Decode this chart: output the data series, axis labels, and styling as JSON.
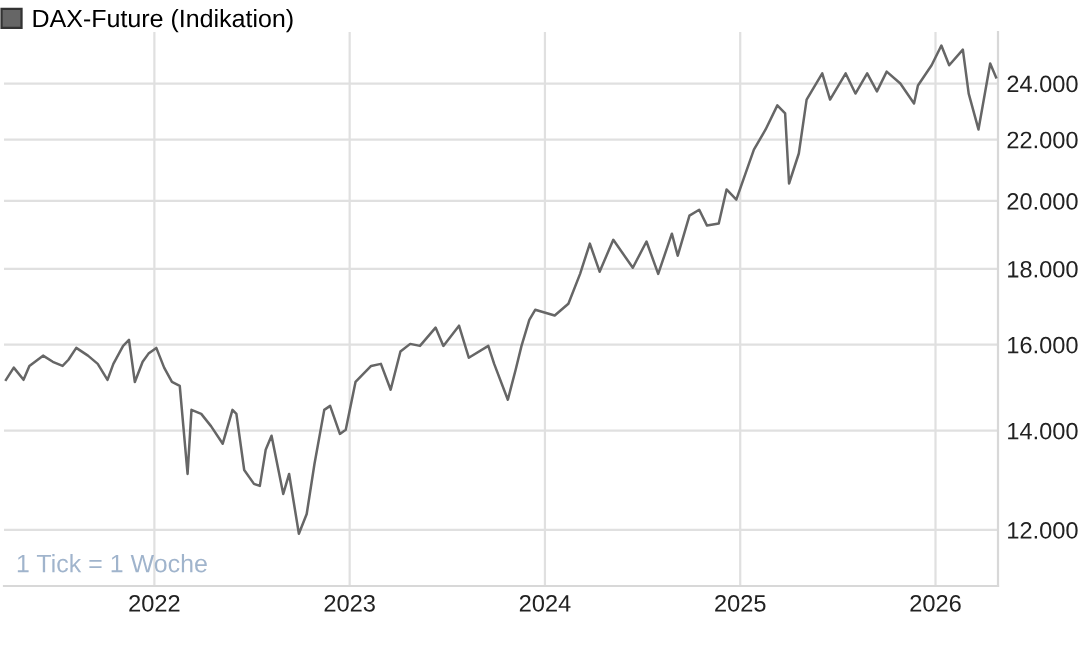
{
  "chart_data": {
    "type": "line",
    "log": "y",
    "grid": true,
    "legend": "top left",
    "marker": "none",
    "line_style": "solid",
    "xlim": [
      2021.23,
      2026.32
    ],
    "xticks": [
      2022,
      2023,
      2024,
      2025,
      2026
    ],
    "ylim": [
      11000,
      26000
    ],
    "yticks": [
      {
        "value": 12000,
        "label": "12.000"
      },
      {
        "value": 14000,
        "label": "14.000"
      },
      {
        "value": 16000,
        "label": "16.000"
      },
      {
        "value": 18000,
        "label": "18.000"
      },
      {
        "value": 20000,
        "label": "20.000"
      },
      {
        "value": 22000,
        "label": "22.000"
      },
      {
        "value": 24000,
        "label": "24.000"
      }
    ],
    "annotations": [
      "1 Tick = 1 Woche"
    ],
    "series": [
      {
        "name": "DAX-Future (Indikation)",
        "color": "#666666",
        "x": [
          2021.24,
          2021.28,
          2021.33,
          2021.36,
          2021.43,
          2021.48,
          2021.53,
          2021.56,
          2021.6,
          2021.66,
          2021.71,
          2021.76,
          2021.79,
          2021.84,
          2021.87,
          2021.9,
          2021.94,
          2021.97,
          2022.01,
          2022.05,
          2022.09,
          2022.13,
          2022.17,
          2022.19,
          2022.24,
          2022.29,
          2022.35,
          2022.4,
          2022.42,
          2022.46,
          2022.51,
          2022.54,
          2022.57,
          2022.6,
          2022.66,
          2022.69,
          2022.74,
          2022.78,
          2022.82,
          2022.87,
          2022.9,
          2022.95,
          2022.98,
          2023.03,
          2023.11,
          2023.16,
          2023.21,
          2023.26,
          2023.31,
          2023.36,
          2023.44,
          2023.48,
          2023.56,
          2023.61,
          2023.71,
          2023.74,
          2023.81,
          2023.85,
          2023.88,
          2023.92,
          2023.95,
          2024.05,
          2024.12,
          2024.18,
          2024.23,
          2024.28,
          2024.35,
          2024.45,
          2024.52,
          2024.58,
          2024.65,
          2024.68,
          2024.74,
          2024.79,
          2024.83,
          2024.89,
          2024.93,
          2024.98,
          2025.07,
          2025.13,
          2025.19,
          2025.23,
          2025.25,
          2025.3,
          2025.34,
          2025.42,
          2025.46,
          2025.54,
          2025.59,
          2025.65,
          2025.7,
          2025.75,
          2025.82,
          2025.89,
          2025.91,
          2025.98,
          2026.03,
          2026.07,
          2026.14,
          2026.17,
          2026.22,
          2026.28,
          2026.31
        ],
        "values": [
          15150,
          15440,
          15150,
          15480,
          15730,
          15580,
          15480,
          15630,
          15920,
          15730,
          15530,
          15150,
          15530,
          15970,
          16120,
          15100,
          15580,
          15780,
          15920,
          15440,
          15100,
          15010,
          13090,
          14460,
          14370,
          14100,
          13720,
          14460,
          14370,
          13170,
          12890,
          12850,
          13590,
          13890,
          12690,
          13090,
          11930,
          12300,
          13300,
          14460,
          14550,
          13930,
          14020,
          15100,
          15480,
          15530,
          14920,
          15830,
          16020,
          15970,
          16430,
          15970,
          16480,
          15680,
          15970,
          15530,
          14690,
          15390,
          15970,
          16630,
          16890,
          16740,
          17050,
          17860,
          18720,
          17920,
          18830,
          18030,
          18780,
          17860,
          19010,
          18370,
          19550,
          19730,
          19250,
          19310,
          20360,
          20040,
          21660,
          22350,
          23200,
          22910,
          20550,
          21530,
          23410,
          24380,
          23410,
          24380,
          23630,
          24380,
          23710,
          24450,
          24000,
          23270,
          23930,
          24690,
          25460,
          24690,
          25300,
          23630,
          22350,
          24760,
          24230
        ]
      }
    ]
  }
}
